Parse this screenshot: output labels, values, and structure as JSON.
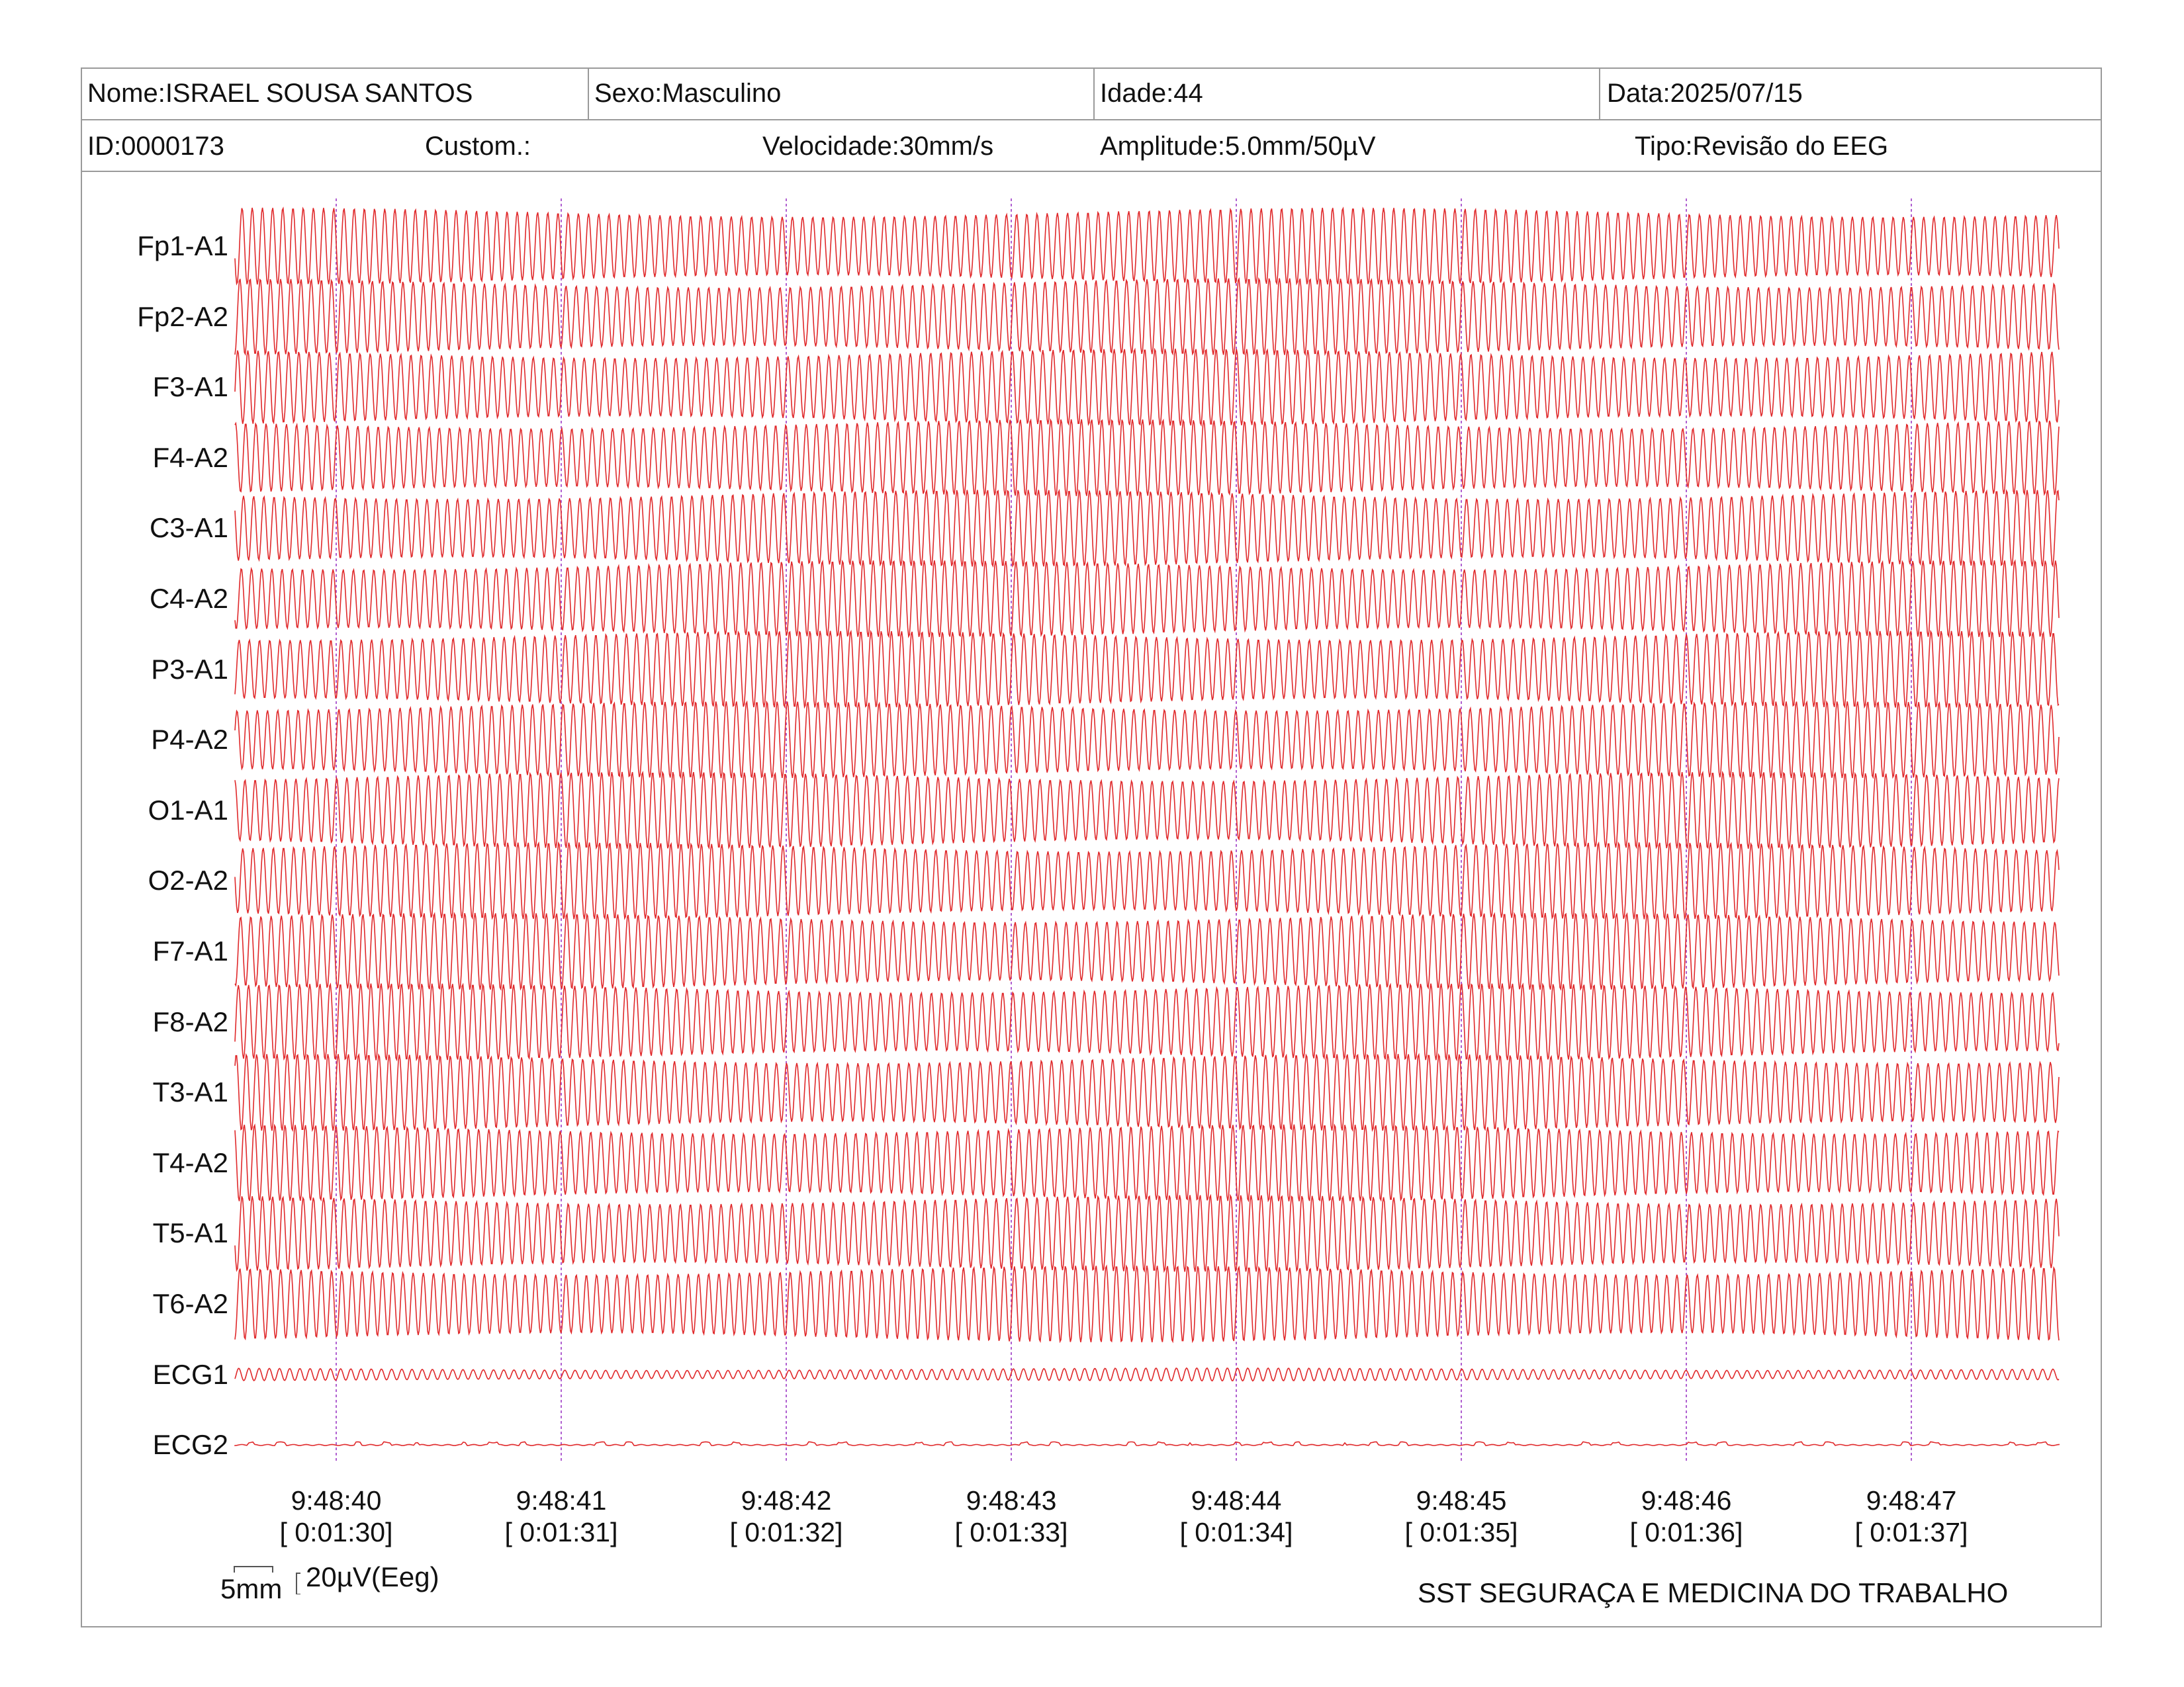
{
  "header": {
    "nome": "Nome:ISRAEL SOUSA SANTOS",
    "sexo": "Sexo:Masculino",
    "idade": "Idade:44",
    "data": "Data:2025/07/15",
    "id": "ID:0000173",
    "custom": "Custom.:",
    "velocidade": "Velocidade:30mm/s",
    "amplitude": "Amplitude:5.0mm/50µV",
    "tipo": "Tipo:Revisão do EEG"
  },
  "channels": [
    "Fp1-A1",
    "Fp2-A2",
    "F3-A1",
    "F4-A2",
    "C3-A1",
    "C4-A2",
    "P3-A1",
    "P4-A2",
    "O1-A1",
    "O2-A2",
    "F7-A1",
    "F8-A2",
    "T3-A1",
    "T4-A2",
    "T5-A1",
    "T6-A2",
    "ECG1",
    "ECG2"
  ],
  "time_marks": [
    {
      "clock": "9:48:40",
      "elapsed": "[ 0:01:30]"
    },
    {
      "clock": "9:48:41",
      "elapsed": "[ 0:01:31]"
    },
    {
      "clock": "9:48:42",
      "elapsed": "[ 0:01:32]"
    },
    {
      "clock": "9:48:43",
      "elapsed": "[ 0:01:33]"
    },
    {
      "clock": "9:48:44",
      "elapsed": "[ 0:01:34]"
    },
    {
      "clock": "9:48:45",
      "elapsed": "[ 0:01:35]"
    },
    {
      "clock": "9:48:46",
      "elapsed": "[ 0:01:36]"
    },
    {
      "clock": "9:48:47",
      "elapsed": "[ 0:01:37]"
    }
  ],
  "scale": {
    "time_label": "5mm",
    "amplitude_label": "20µV(Eeg)"
  },
  "footer": {
    "company": "SST SEGURAÇA E MEDICINA DO TRABALHO"
  },
  "colors": {
    "trace": "#e0292b",
    "second_marker": "#b05fd0",
    "border": "#9a9a9a"
  }
}
